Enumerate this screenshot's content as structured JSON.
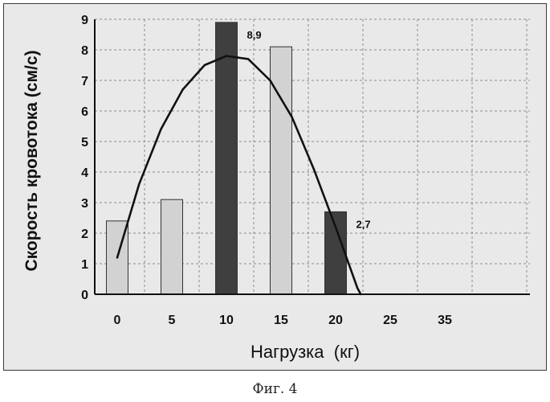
{
  "chart_data": {
    "type": "bar",
    "categories": [
      "0",
      "5",
      "10",
      "15",
      "20",
      "25",
      "35"
    ],
    "series": [
      {
        "values": [
          2.4,
          3.1,
          8.9,
          8.1,
          2.7,
          null,
          null
        ]
      }
    ],
    "bar_colors": [
      "#d2d2d2",
      "#d2d2d2",
      "#3f3f3f",
      "#d2d2d2",
      "#3f3f3f",
      null,
      null
    ],
    "data_labels": [
      {
        "index": 2,
        "text": "8,9"
      },
      {
        "index": 4,
        "text": "2,7"
      }
    ],
    "trendline": {
      "type": "polynomial",
      "points": [
        [
          0,
          1.2
        ],
        [
          2,
          3.6
        ],
        [
          4,
          5.4
        ],
        [
          6,
          6.7
        ],
        [
          8,
          7.5
        ],
        [
          10,
          7.8
        ],
        [
          12,
          7.7
        ],
        [
          14,
          7.0
        ],
        [
          16,
          5.8
        ],
        [
          18,
          4.1
        ],
        [
          20,
          2.2
        ],
        [
          21,
          1.2
        ],
        [
          22,
          0.2
        ],
        [
          22.3,
          0
        ]
      ]
    },
    "xlabel": "Нагрузка  (кг)",
    "ylabel": "Скорость кровотока (см/с)",
    "ylim": [
      0,
      9
    ],
    "yticks": [
      "0",
      "1",
      "2",
      "3",
      "4",
      "5",
      "6",
      "7",
      "8",
      "9"
    ],
    "grid": true
  },
  "caption": "Фиг. 4",
  "colors": {
    "dark_bar": "#3f3f3f",
    "light_bar": "#d2d2d2",
    "curve": "#111111",
    "grid": "#8a8a8a",
    "frame": "#3a3a3a"
  }
}
